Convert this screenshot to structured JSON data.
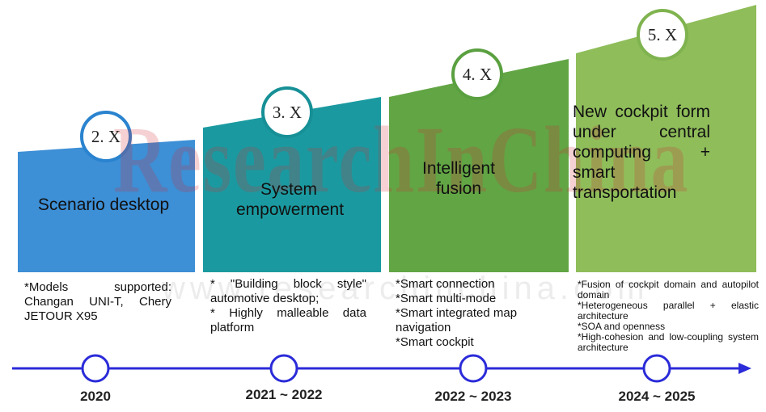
{
  "stages": [
    {
      "badge": "2. X",
      "title": "Scenario desktop",
      "year": "2020",
      "details": [
        "*Models supported: Changan UNI-T, Chery JETOUR X95"
      ]
    },
    {
      "badge": "3. X",
      "title": "System empowerment",
      "year": "2021 ~ 2022",
      "details": [
        "* \"Building block style\" automotive desktop;",
        "* Highly malleable data platform"
      ]
    },
    {
      "badge": "4. X",
      "title": "Intelligent fusion",
      "year": "2022 ~ 2023",
      "details": [
        "*Smart connection",
        "*Smart multi-mode",
        "*Smart integrated map navigation",
        "*Smart cockpit"
      ]
    },
    {
      "badge": "5. X",
      "title": "New cockpit form under central computing + smart transportation",
      "year": "2024 ~ 2025",
      "details": [
        "*Fusion of cockpit domain and autopilot domain",
        "*Heterogeneous parallel + elastic architecture",
        "*SOA and openness",
        "*High-cohesion and low-coupling system architecture"
      ]
    }
  ],
  "watermark": "ResearchInChina",
  "watermark_url": "www.researchinchina.com",
  "colors": {
    "stage1": "#3d8fd6",
    "stage2": "#1a9aa0",
    "stage3": "#62a544",
    "stage4": "#8fbd5a",
    "timeline": "#2b2bd9"
  }
}
